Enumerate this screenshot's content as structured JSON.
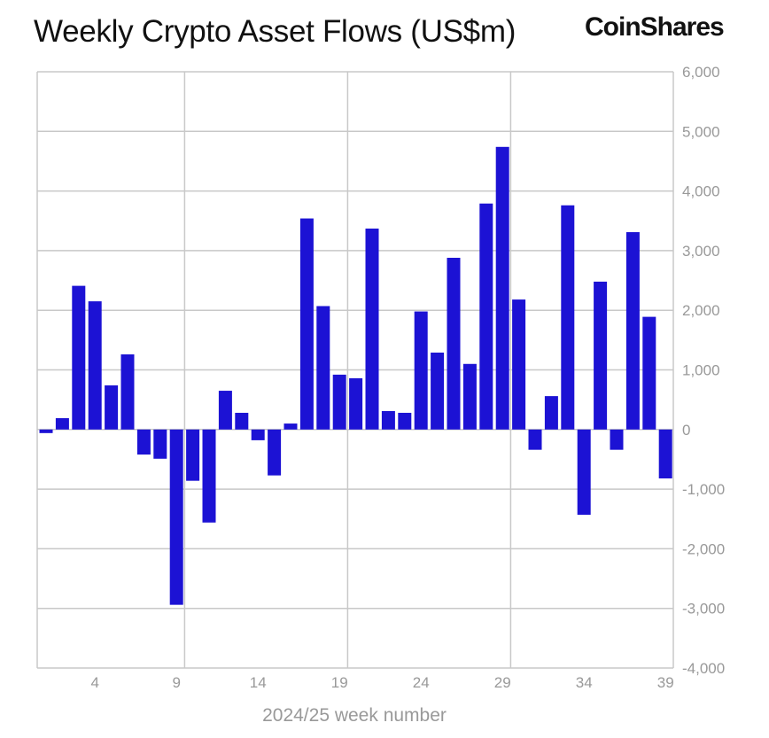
{
  "chart_data": {
    "type": "bar",
    "title": "Weekly Crypto Asset Flows (US$m)",
    "logo": "CoinShares",
    "xlabel": "2024/25 week number",
    "ylabel": "",
    "ylim": [
      -4000,
      6000
    ],
    "yticks": [
      6000,
      5000,
      4000,
      3000,
      2000,
      1000,
      0,
      -1000,
      -2000,
      -3000,
      -4000
    ],
    "ytick_labels": [
      "6,000",
      "5,000",
      "4,000",
      "3,000",
      "2,000",
      "1,000",
      "0",
      "-1,000",
      "-2,000",
      "-3,000",
      "-4,000"
    ],
    "xticks": [
      4,
      9,
      14,
      19,
      24,
      29,
      34,
      39
    ],
    "grid": true,
    "bar_color": "#1c12d4",
    "categories": [
      1,
      2,
      3,
      4,
      5,
      6,
      7,
      8,
      9,
      10,
      11,
      12,
      13,
      14,
      15,
      16,
      17,
      18,
      19,
      20,
      21,
      22,
      23,
      24,
      25,
      26,
      27,
      28,
      29,
      30,
      31,
      32,
      33,
      34,
      35,
      36,
      37,
      38,
      39
    ],
    "values": [
      -60,
      190,
      2410,
      2150,
      740,
      1260,
      -420,
      -490,
      -2940,
      -860,
      -1560,
      650,
      280,
      -180,
      -770,
      100,
      3540,
      2070,
      920,
      860,
      3370,
      310,
      280,
      1980,
      1290,
      2880,
      1100,
      3790,
      4740,
      2180,
      -340,
      560,
      3760,
      -1430,
      2480,
      -340,
      3310,
      1890,
      -820
    ]
  }
}
